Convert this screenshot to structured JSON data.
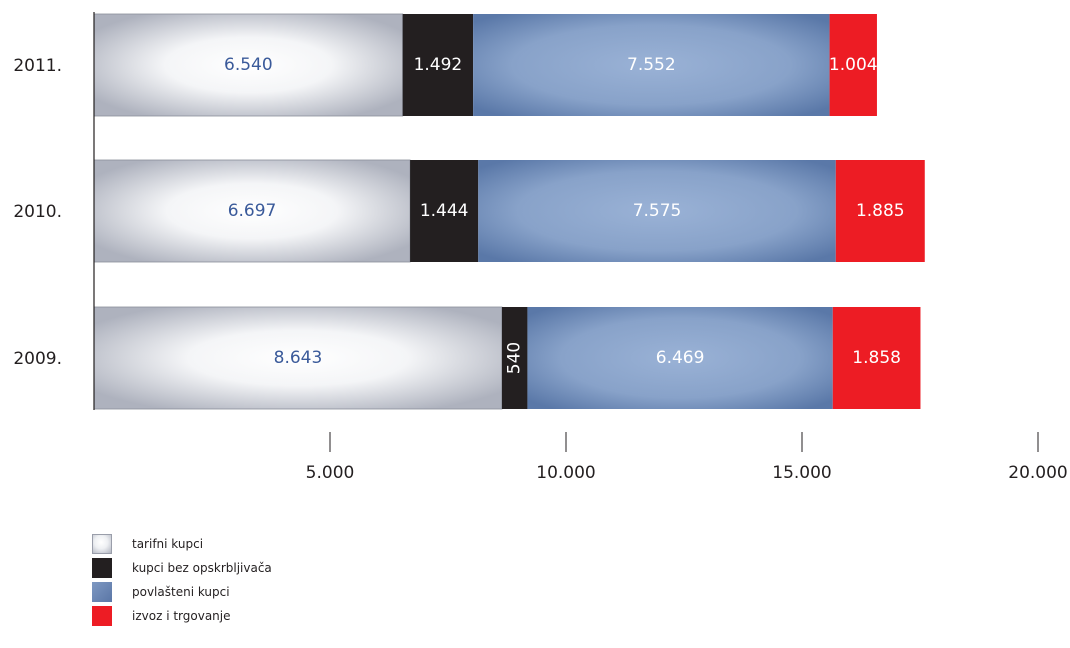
{
  "chart_data": {
    "type": "bar",
    "orientation": "horizontal",
    "stacked": true,
    "categories": [
      "2011.",
      "2010.",
      "2009."
    ],
    "series": [
      {
        "name": "tarifni kupci",
        "values": [
          6540,
          6697,
          8643
        ],
        "labels": [
          "6.540",
          "6.697",
          "8.643"
        ],
        "color": "#dcdde3",
        "label_color": "#3a5a9a"
      },
      {
        "name": "kupci bez opskrbljivača",
        "values": [
          1492,
          1444,
          540
        ],
        "labels": [
          "1.492",
          "1.444",
          "540"
        ],
        "color": "#231f20",
        "label_color": "#ffffff"
      },
      {
        "name": "povlašteni kupci",
        "values": [
          7552,
          7575,
          6469
        ],
        "labels": [
          "7.552",
          "7.575",
          "6.469"
        ],
        "color": "#8aa3c8",
        "label_color": "#ffffff"
      },
      {
        "name": "izvoz i trgovanje",
        "values": [
          1004,
          1885,
          1858
        ],
        "labels": [
          "1.004",
          "1.885",
          "1.858"
        ],
        "color": "#ed1c24",
        "label_color": "#ffffff"
      }
    ],
    "xticks": [
      {
        "value": 5000,
        "label": "5.000"
      },
      {
        "value": 10000,
        "label": "10.000"
      },
      {
        "value": 15000,
        "label": "15.000"
      },
      {
        "value": 20000,
        "label": "20.000"
      }
    ],
    "xlim": [
      0,
      20000
    ],
    "legend_position": "bottom-left",
    "grid": false
  }
}
